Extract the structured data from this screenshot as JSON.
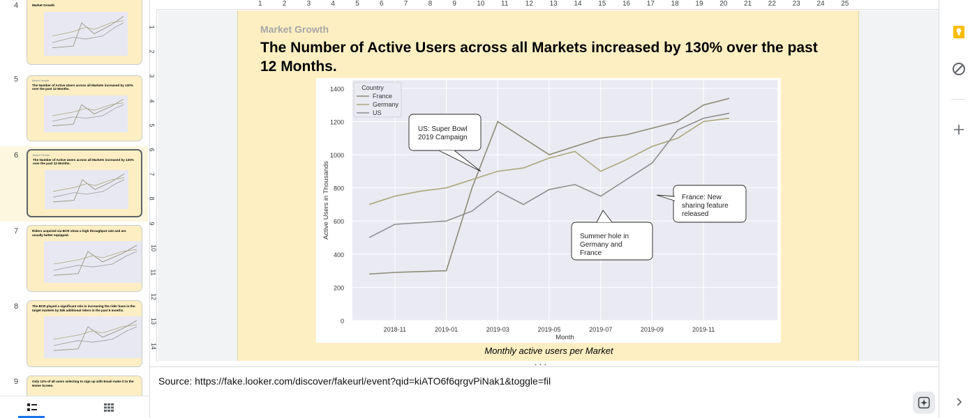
{
  "filmstrip": {
    "slides": [
      {
        "number": "4",
        "title": "Market Growth",
        "subtitle": ""
      },
      {
        "number": "5",
        "title": "The Number of Active Users across all Markets increased by 130% over the past 12 Months.",
        "subtitle": "Market Growth"
      },
      {
        "number": "6",
        "title": "The Number of Active Users across all Markets increased by 130% over the past 12 Months.",
        "subtitle": "Market Growth"
      },
      {
        "number": "7",
        "title": "Riders acquired via BCR show a high throughput rate and are usually better equipped.",
        "subtitle": ""
      },
      {
        "number": "8",
        "title": "The BCR played a significant role in increasing the rider base in the target markets by 53k additional riders in the past 6 months.",
        "subtitle": ""
      },
      {
        "number": "9",
        "title": "Only 13% of all users selecting to sign up with Email make it to the Home Screen.",
        "subtitle": ""
      }
    ],
    "selected_index": 2,
    "view_buttons": [
      "filmstrip-view-icon",
      "grid-view-icon"
    ]
  },
  "rulers": {
    "top": [
      "1",
      "2",
      "3",
      "4",
      "5",
      "6",
      "7",
      "8",
      "9",
      "10",
      "11",
      "12",
      "13",
      "14",
      "15",
      "16",
      "17",
      "18",
      "19",
      "20",
      "21",
      "22",
      "23",
      "24",
      "25"
    ],
    "left": [
      "1",
      "2",
      "3",
      "4",
      "5",
      "6",
      "7",
      "8",
      "9",
      "10",
      "11",
      "12",
      "13",
      "14"
    ]
  },
  "slide": {
    "subtitle": "Market Growth",
    "title": "The Number of Active Users across all Markets increased by 130% over the past 12 Months.",
    "caption": "Monthly active users per Market",
    "accent_color": "#feefc3"
  },
  "chart_data": {
    "type": "line",
    "title": "",
    "xlabel": "Month",
    "ylabel": "Active Users in Thousands",
    "x": [
      "2018-10",
      "2018-11",
      "2018-12",
      "2019-01",
      "2019-02",
      "2019-03",
      "2019-04",
      "2019-05",
      "2019-06",
      "2019-07",
      "2019-08",
      "2019-09",
      "2019-10",
      "2019-11",
      "2019-12"
    ],
    "x_ticks": [
      "2018-11",
      "2019-01",
      "2019-03",
      "2019-05",
      "2019-07",
      "2019-09",
      "2019-11"
    ],
    "ylim": [
      0,
      1450
    ],
    "y_ticks": [
      "0",
      "200",
      "400",
      "600",
      "800",
      "1000",
      "1200",
      "1400"
    ],
    "grid": true,
    "legend": {
      "title": "Country",
      "placement": "top-left"
    },
    "series": [
      {
        "name": "France",
        "color": "#8c8a76",
        "values": [
          280,
          290,
          295,
          300,
          800,
          1200,
          1100,
          1000,
          1050,
          1100,
          1120,
          1160,
          1200,
          1300,
          1340
        ]
      },
      {
        "name": "Germany",
        "color": "#aaa67c",
        "values": [
          700,
          750,
          780,
          800,
          850,
          900,
          920,
          980,
          1020,
          900,
          970,
          1050,
          1100,
          1200,
          1220
        ]
      },
      {
        "name": "US",
        "color": "#8e8e8e",
        "values": [
          500,
          580,
          590,
          600,
          660,
          780,
          700,
          790,
          820,
          750,
          850,
          950,
          1150,
          1220,
          1250
        ]
      }
    ],
    "annotations": [
      {
        "text": "US: Super Bowl\n2019 Campaign"
      },
      {
        "text": "Summer hole in\nGermany and\nFrance"
      },
      {
        "text": "France: New\nsharing feature\nreleased"
      }
    ]
  },
  "notes": {
    "text": "Source: https://fake.looker.com/discover/fakeurl/event?qid=kiATO6f6qrgvPiNak1&toggle=fil"
  },
  "side_panel": {
    "icons": [
      "keep-icon",
      "tasks-icon",
      "add-icon",
      "expand-icon"
    ]
  }
}
